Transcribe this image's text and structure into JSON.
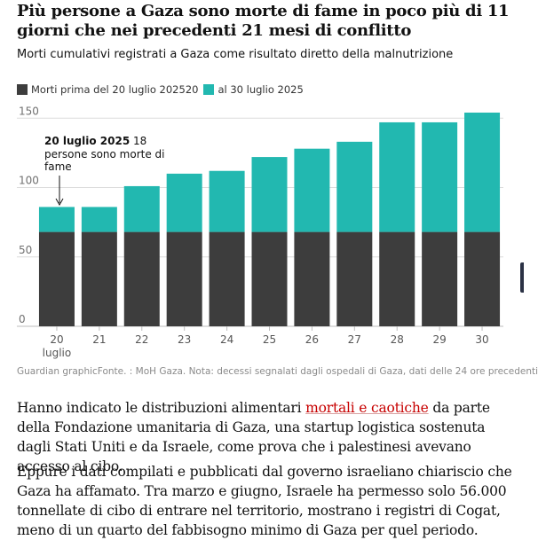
{
  "header": {
    "title": "Più persone a Gaza sono morte di fame in poco più di 11 giorni che nei precedenti 21 mesi di conflitto",
    "subtitle": "Morti cumulativi registrati a Gaza come risultato diretto della malnutrizione"
  },
  "legend": {
    "item1_label": "Morti prima del 20 luglio 202520",
    "item2_label": "al 30 luglio 2025"
  },
  "colors": {
    "before": "#3d3d3d",
    "after": "#22b8b0",
    "grid": "#dcdcdc"
  },
  "annotation": {
    "bold": "20 luglio 2025",
    "rest": " 18 persone sono morte di fame"
  },
  "chart_data": {
    "type": "bar",
    "stacked": true,
    "categories": [
      "20",
      "21",
      "22",
      "23",
      "24",
      "25",
      "26",
      "27",
      "28",
      "29",
      "30"
    ],
    "x_sublabel": "luglio",
    "series": [
      {
        "name": "Morti prima del 20 luglio 2025",
        "values": [
          68,
          68,
          68,
          68,
          68,
          68,
          68,
          68,
          68,
          68,
          68
        ]
      },
      {
        "name": "20 al 30 luglio 2025",
        "values": [
          18,
          18,
          33,
          42,
          44,
          54,
          60,
          65,
          79,
          79,
          86
        ]
      }
    ],
    "totals": [
      86,
      86,
      101,
      110,
      112,
      122,
      128,
      133,
      147,
      147,
      154
    ],
    "yticks": [
      0,
      50,
      100,
      150
    ],
    "ylim": [
      0,
      154
    ],
    "grid": true
  },
  "footer": {
    "source": "Guardian graphicFonte. : MoH Gaza. Nota: decessi segnalati dagli ospedali di Gaza, dati delle 24 ore precedenti"
  },
  "article": {
    "p1_before": "Hanno indicato le distribuzioni alimentari ",
    "p1_link": "mortali e caotiche",
    "p1_after": " da parte della Fondazione umanitaria di Gaza, una startup logistica sostenuta dagli Stati Uniti e da Israele, come prova che i palestinesi avevano accesso al cibo.",
    "p2": "Eppure i dati compilati e pubblicati dal governo israeliano chiariscio che Gaza ha affamato. Tra marzo e giugno, Israele ha permesso solo 56.000 tonnellate di cibo di entrare nel territorio, mostrano i registri di Cogat, meno di un quarto del fabbisogno minimo di Gaza per quel periodo."
  }
}
